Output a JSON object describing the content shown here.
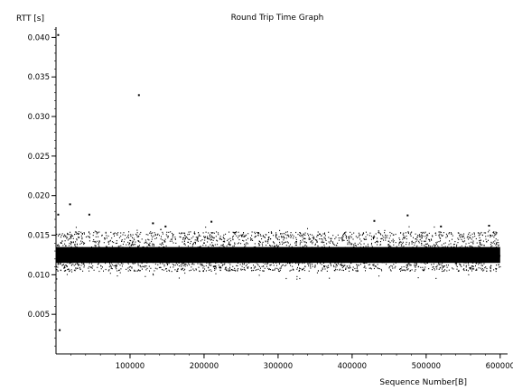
{
  "chart_data": {
    "type": "scatter",
    "title": "Round Trip Time Graph",
    "ylabel": "RTT [s]",
    "xlabel": "Sequence Number[B]",
    "xlim": [
      0,
      610000
    ],
    "ylim": [
      0.0,
      0.0413
    ],
    "x_ticks": [
      100000,
      200000,
      300000,
      400000,
      500000,
      600000
    ],
    "x_tick_labels": [
      "100000",
      "200000",
      "300000",
      "400000",
      "500000",
      "600000"
    ],
    "y_ticks": [
      0.005,
      0.01,
      0.015,
      0.02,
      0.025,
      0.03,
      0.035,
      0.04
    ],
    "y_tick_labels": [
      "0.005",
      "0.010",
      "0.015",
      "0.020",
      "0.025",
      "0.030",
      "0.035",
      "0.040"
    ],
    "grid": false,
    "legend": "none",
    "marker_color": "#000000",
    "series": [
      {
        "dense_band": {
          "x_range": [
            0,
            600000
          ],
          "core_rtt_range": [
            0.0115,
            0.0135
          ],
          "spread_rtt_range": [
            0.0105,
            0.0155
          ],
          "extreme_rtt_range": [
            0.0095,
            0.0162
          ]
        },
        "points": [
          {
            "x": 3000,
            "y": 0.0403
          },
          {
            "x": 5000,
            "y": 0.003
          },
          {
            "x": 3000,
            "y": 0.0176
          },
          {
            "x": 19000,
            "y": 0.0189
          },
          {
            "x": 45000,
            "y": 0.0176
          },
          {
            "x": 112000,
            "y": 0.0327
          },
          {
            "x": 131000,
            "y": 0.0165
          },
          {
            "x": 148000,
            "y": 0.0161
          },
          {
            "x": 210000,
            "y": 0.0167
          },
          {
            "x": 430000,
            "y": 0.0168
          },
          {
            "x": 475000,
            "y": 0.0175
          },
          {
            "x": 520000,
            "y": 0.0161
          },
          {
            "x": 585000,
            "y": 0.0162
          }
        ]
      }
    ]
  }
}
